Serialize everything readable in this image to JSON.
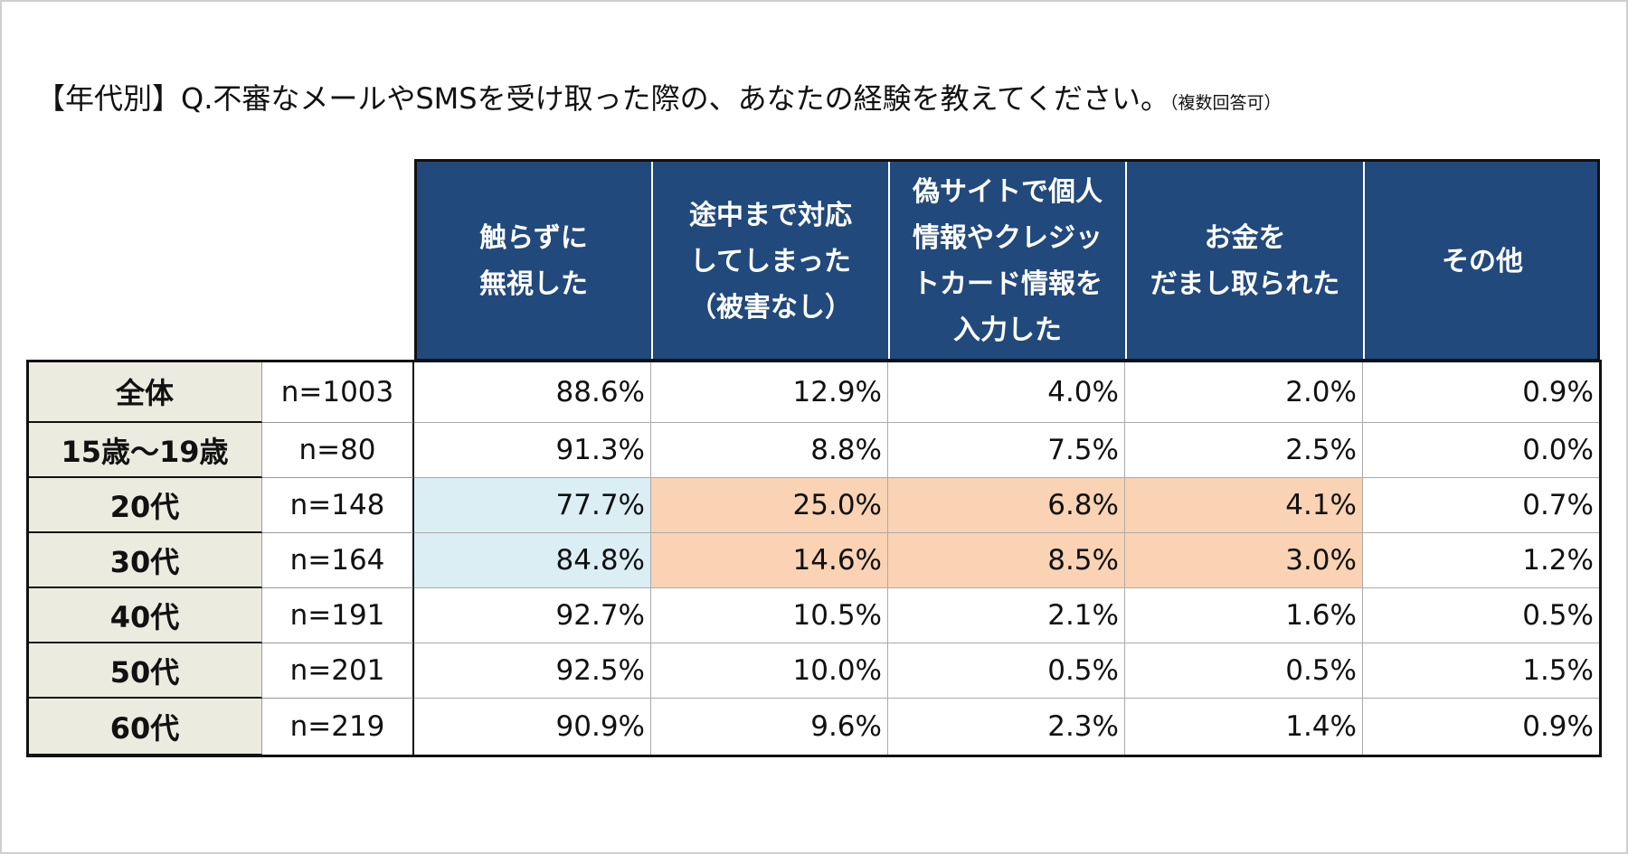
{
  "header": {
    "title": "【年代別】Q.不審なメールやSMSを受け取った際の、あなたの経験を教えてください。",
    "note": "（複数回答可）"
  },
  "table": {
    "columns": [
      {
        "lines": [
          "触らずに",
          "無視した"
        ]
      },
      {
        "lines": [
          "途中まで対応",
          "してしまった",
          "（被害なし）"
        ]
      },
      {
        "lines": [
          "偽サイトで個人",
          "情報やクレジッ",
          "トカード情報を",
          "入力した"
        ]
      },
      {
        "lines": [
          "お金を",
          "だまし取られた"
        ]
      },
      {
        "lines": [
          "その他"
        ]
      }
    ],
    "header_color": "#22497c",
    "label_color": "#ecebe0",
    "rows": [
      {
        "label": "全体",
        "n": "n=1003",
        "values": [
          "88.6%",
          "12.9%",
          "4.0%",
          "2.0%",
          "0.9%"
        ],
        "fills": [
          "#ffffff",
          "#ffffff",
          "#ffffff",
          "#ffffff",
          "#ffffff"
        ]
      },
      {
        "label": "15歳〜19歳",
        "n": "n=80",
        "values": [
          "91.3%",
          "8.8%",
          "7.5%",
          "2.5%",
          "0.0%"
        ],
        "fills": [
          "#ffffff",
          "#ffffff",
          "#ffffff",
          "#ffffff",
          "#ffffff"
        ]
      },
      {
        "label": "20代",
        "n": "n=148",
        "values": [
          "77.7%",
          "25.0%",
          "6.8%",
          "4.1%",
          "0.7%"
        ],
        "fills": [
          "#dbeef4",
          "#fad3b4",
          "#fad3b4",
          "#fad3b4",
          "#ffffff"
        ]
      },
      {
        "label": "30代",
        "n": "n=164",
        "values": [
          "84.8%",
          "14.6%",
          "8.5%",
          "3.0%",
          "1.2%"
        ],
        "fills": [
          "#dbeef4",
          "#fad3b4",
          "#fad3b4",
          "#fad3b4",
          "#ffffff"
        ]
      },
      {
        "label": "40代",
        "n": "n=191",
        "values": [
          "92.7%",
          "10.5%",
          "2.1%",
          "1.6%",
          "0.5%"
        ],
        "fills": [
          "#ffffff",
          "#ffffff",
          "#ffffff",
          "#ffffff",
          "#ffffff"
        ]
      },
      {
        "label": "50代",
        "n": "n=201",
        "values": [
          "92.5%",
          "10.0%",
          "0.5%",
          "0.5%",
          "1.5%"
        ],
        "fills": [
          "#ffffff",
          "#ffffff",
          "#ffffff",
          "#ffffff",
          "#ffffff"
        ]
      },
      {
        "label": "60代",
        "n": "n=219",
        "values": [
          "90.9%",
          "9.6%",
          "2.3%",
          "1.4%",
          "0.9%"
        ],
        "fills": [
          "#ffffff",
          "#ffffff",
          "#ffffff",
          "#ffffff",
          "#ffffff"
        ]
      }
    ]
  }
}
